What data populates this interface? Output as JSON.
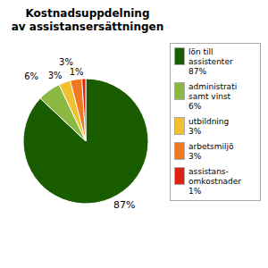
{
  "chart_data": {
    "type": "pie",
    "title": "Kostnadsuppdelning\nav assistansersättningen",
    "categories": [
      "lön till\nassistenter\n87%",
      "administrati\nsamt vinst\n6%",
      "utbildning\n3%",
      "arbetsmiljö\n3%",
      "assistans-\nomkostnader\n1%"
    ],
    "values": [
      87,
      6,
      3,
      3,
      1
    ],
    "value_labels": [
      "87%",
      "6%",
      "3%",
      "3%",
      "1%"
    ],
    "colors": [
      "#1a5c00",
      "#8ab840",
      "#f0c030",
      "#f07820",
      "#e02010"
    ],
    "legend": "right",
    "data_labels": true
  }
}
